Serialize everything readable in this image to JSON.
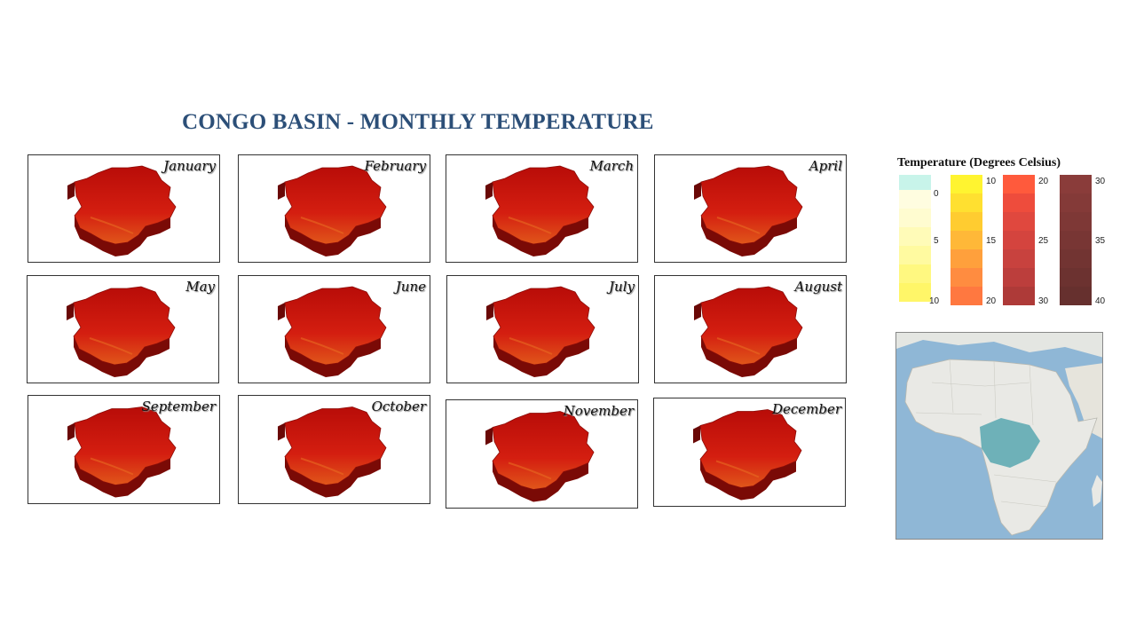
{
  "title": "CONGO BASIN - MONTHLY TEMPERATURE",
  "months": [
    "January",
    "February",
    "March",
    "April",
    "May",
    "June",
    "July",
    "August",
    "September",
    "October",
    "November",
    "December"
  ],
  "legend": {
    "title": "Temperature (Degrees Celsius)",
    "bars": [
      {
        "colors": [
          "#c8f4ea",
          "#fffde0",
          "#fffcd0",
          "#fffbb8",
          "#fffaa0",
          "#fff880",
          "#fff668"
        ],
        "ticks": [
          "0",
          "5",
          "10"
        ]
      },
      {
        "colors": [
          "#fff430",
          "#ffe030",
          "#ffcc30",
          "#ffb838",
          "#ffa03c",
          "#ff8c40",
          "#ff7840"
        ],
        "ticks": [
          "10",
          "15",
          "20"
        ]
      },
      {
        "colors": [
          "#ff5a3c",
          "#ee4c3c",
          "#e0483e",
          "#d4443e",
          "#c8423e",
          "#bc3e3c",
          "#ae3a38"
        ],
        "ticks": [
          "20",
          "25",
          "30"
        ]
      },
      {
        "colors": [
          "#8a3c3a",
          "#843a38",
          "#7e3836",
          "#783634",
          "#723432",
          "#6c3230",
          "#66302e"
        ],
        "ticks": [
          "30",
          "35",
          "40"
        ]
      }
    ]
  },
  "colors": {
    "title": "#2c4f78",
    "basin_top": "#c4140e",
    "basin_side": "#7a0a06",
    "ocean": "#8fb7d6",
    "land": "#e9e9e5",
    "highlight": "#4fa3ad"
  }
}
